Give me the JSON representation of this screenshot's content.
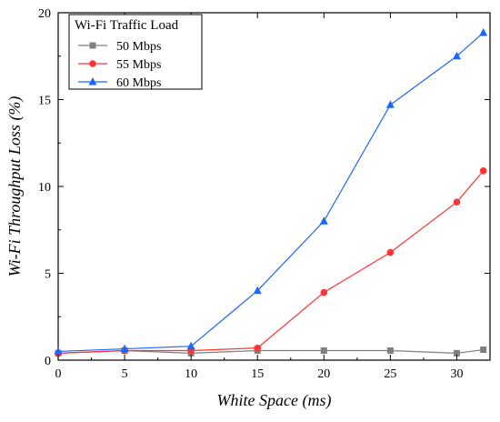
{
  "chart_data": {
    "type": "line",
    "title": "",
    "xlabel": "White Space (ms)",
    "ylabel": "Wi-Fi Throughput Loss (%)",
    "xlim": [
      0,
      32.5
    ],
    "ylim": [
      0,
      20
    ],
    "xticks": [
      0,
      5,
      10,
      15,
      20,
      25,
      30
    ],
    "yticks": [
      0,
      5,
      10,
      15,
      20
    ],
    "grid": false,
    "legend": {
      "title": "Wi-Fi Traffic Load",
      "placement": "top-left"
    },
    "series": [
      {
        "name": "50 Mbps",
        "color": "#808080",
        "marker": "square",
        "x": [
          0,
          5,
          10,
          15,
          20,
          25,
          30,
          32
        ],
        "y": [
          0.4,
          0.55,
          0.4,
          0.55,
          0.55,
          0.55,
          0.4,
          0.6
        ]
      },
      {
        "name": "55 Mbps",
        "color": "#ff3333",
        "marker": "circle",
        "x": [
          0,
          5,
          10,
          15,
          20,
          25,
          30,
          32
        ],
        "y": [
          0.4,
          0.55,
          0.55,
          0.7,
          3.9,
          6.2,
          9.1,
          10.9
        ]
      },
      {
        "name": "60 Mbps",
        "color": "#1a66ff",
        "marker": "triangle",
        "x": [
          0,
          5,
          10,
          15,
          20,
          25,
          30,
          32
        ],
        "y": [
          0.5,
          0.65,
          0.8,
          4.0,
          8.0,
          14.7,
          17.5,
          18.85
        ]
      }
    ]
  }
}
